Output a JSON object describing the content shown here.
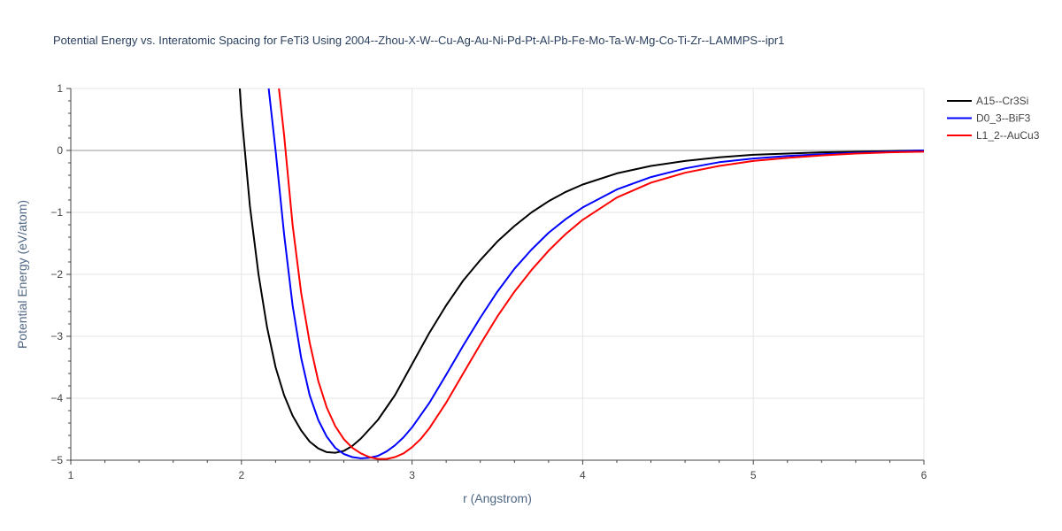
{
  "chart_data": {
    "type": "line",
    "title": "Potential Energy vs. Interatomic Spacing for FeTi3 Using 2004--Zhou-X-W--Cu-Ag-Au-Ni-Pd-Pt-Al-Pb-Fe-Mo-Ta-W-Mg-Co-Ti-Zr--LAMMPS--ipr1",
    "xlabel": "r (Angstrom)",
    "ylabel": "Potential Energy (eV/atom)",
    "xlim": [
      1,
      6
    ],
    "ylim": [
      -5,
      1
    ],
    "xticks": [
      "1",
      "2",
      "3",
      "4",
      "5",
      "6"
    ],
    "yticks": [
      "1",
      "0",
      "−1",
      "−2",
      "−3",
      "−4",
      "−5"
    ],
    "xtick_values": [
      1,
      2,
      3,
      4,
      5,
      6
    ],
    "ytick_values": [
      1,
      0,
      -1,
      -2,
      -3,
      -4,
      -5
    ],
    "grid": true,
    "legend_position": "top-right",
    "series": [
      {
        "name": "A15--Cr3Si",
        "color": "#000000",
        "x": [
          1.99,
          2.0,
          2.05,
          2.1,
          2.15,
          2.2,
          2.25,
          2.3,
          2.35,
          2.4,
          2.45,
          2.5,
          2.55,
          2.6,
          2.65,
          2.7,
          2.75,
          2.8,
          2.9,
          3.0,
          3.1,
          3.2,
          3.3,
          3.4,
          3.5,
          3.6,
          3.7,
          3.8,
          3.9,
          4.0,
          4.2,
          4.4,
          4.6,
          4.8,
          5.0,
          5.2,
          5.4,
          5.6,
          5.8,
          6.0
        ],
        "y": [
          1.0,
          0.6,
          -0.9,
          -2.0,
          -2.85,
          -3.5,
          -3.95,
          -4.28,
          -4.52,
          -4.7,
          -4.81,
          -4.87,
          -4.88,
          -4.85,
          -4.77,
          -4.65,
          -4.5,
          -4.35,
          -3.95,
          -3.45,
          -2.95,
          -2.5,
          -2.1,
          -1.77,
          -1.47,
          -1.22,
          -1.0,
          -0.82,
          -0.67,
          -0.55,
          -0.37,
          -0.25,
          -0.17,
          -0.11,
          -0.07,
          -0.05,
          -0.03,
          -0.02,
          -0.01,
          0.0
        ]
      },
      {
        "name": "D0_3--BiF3",
        "color": "#0000ff",
        "x": [
          2.16,
          2.2,
          2.25,
          2.3,
          2.35,
          2.4,
          2.45,
          2.5,
          2.55,
          2.6,
          2.65,
          2.7,
          2.75,
          2.8,
          2.85,
          2.9,
          2.95,
          3.0,
          3.1,
          3.2,
          3.3,
          3.4,
          3.5,
          3.6,
          3.7,
          3.8,
          3.9,
          4.0,
          4.2,
          4.4,
          4.6,
          4.8,
          5.0,
          5.2,
          5.4,
          5.6,
          5.8,
          6.0
        ],
        "y": [
          1.0,
          0.0,
          -1.35,
          -2.5,
          -3.35,
          -3.95,
          -4.35,
          -4.62,
          -4.8,
          -4.9,
          -4.95,
          -4.97,
          -4.96,
          -4.93,
          -4.86,
          -4.76,
          -4.63,
          -4.47,
          -4.08,
          -3.62,
          -3.15,
          -2.7,
          -2.28,
          -1.91,
          -1.6,
          -1.33,
          -1.11,
          -0.92,
          -0.63,
          -0.43,
          -0.29,
          -0.19,
          -0.13,
          -0.09,
          -0.06,
          -0.04,
          -0.02,
          0.0
        ]
      },
      {
        "name": "L1_2--AuCu3",
        "color": "#ff0000",
        "x": [
          2.22,
          2.25,
          2.3,
          2.35,
          2.4,
          2.45,
          2.5,
          2.55,
          2.6,
          2.65,
          2.7,
          2.75,
          2.8,
          2.85,
          2.9,
          2.95,
          3.0,
          3.05,
          3.1,
          3.2,
          3.3,
          3.4,
          3.5,
          3.6,
          3.7,
          3.8,
          3.9,
          4.0,
          4.2,
          4.4,
          4.6,
          4.8,
          5.0,
          5.2,
          5.4,
          5.6,
          5.8,
          6.0
        ],
        "y": [
          1.0,
          0.25,
          -1.2,
          -2.3,
          -3.1,
          -3.72,
          -4.15,
          -4.45,
          -4.66,
          -4.8,
          -4.89,
          -4.95,
          -4.98,
          -4.98,
          -4.95,
          -4.89,
          -4.79,
          -4.66,
          -4.49,
          -4.07,
          -3.6,
          -3.13,
          -2.68,
          -2.28,
          -1.93,
          -1.62,
          -1.35,
          -1.12,
          -0.76,
          -0.52,
          -0.36,
          -0.25,
          -0.17,
          -0.12,
          -0.08,
          -0.05,
          -0.03,
          -0.02
        ]
      }
    ]
  }
}
